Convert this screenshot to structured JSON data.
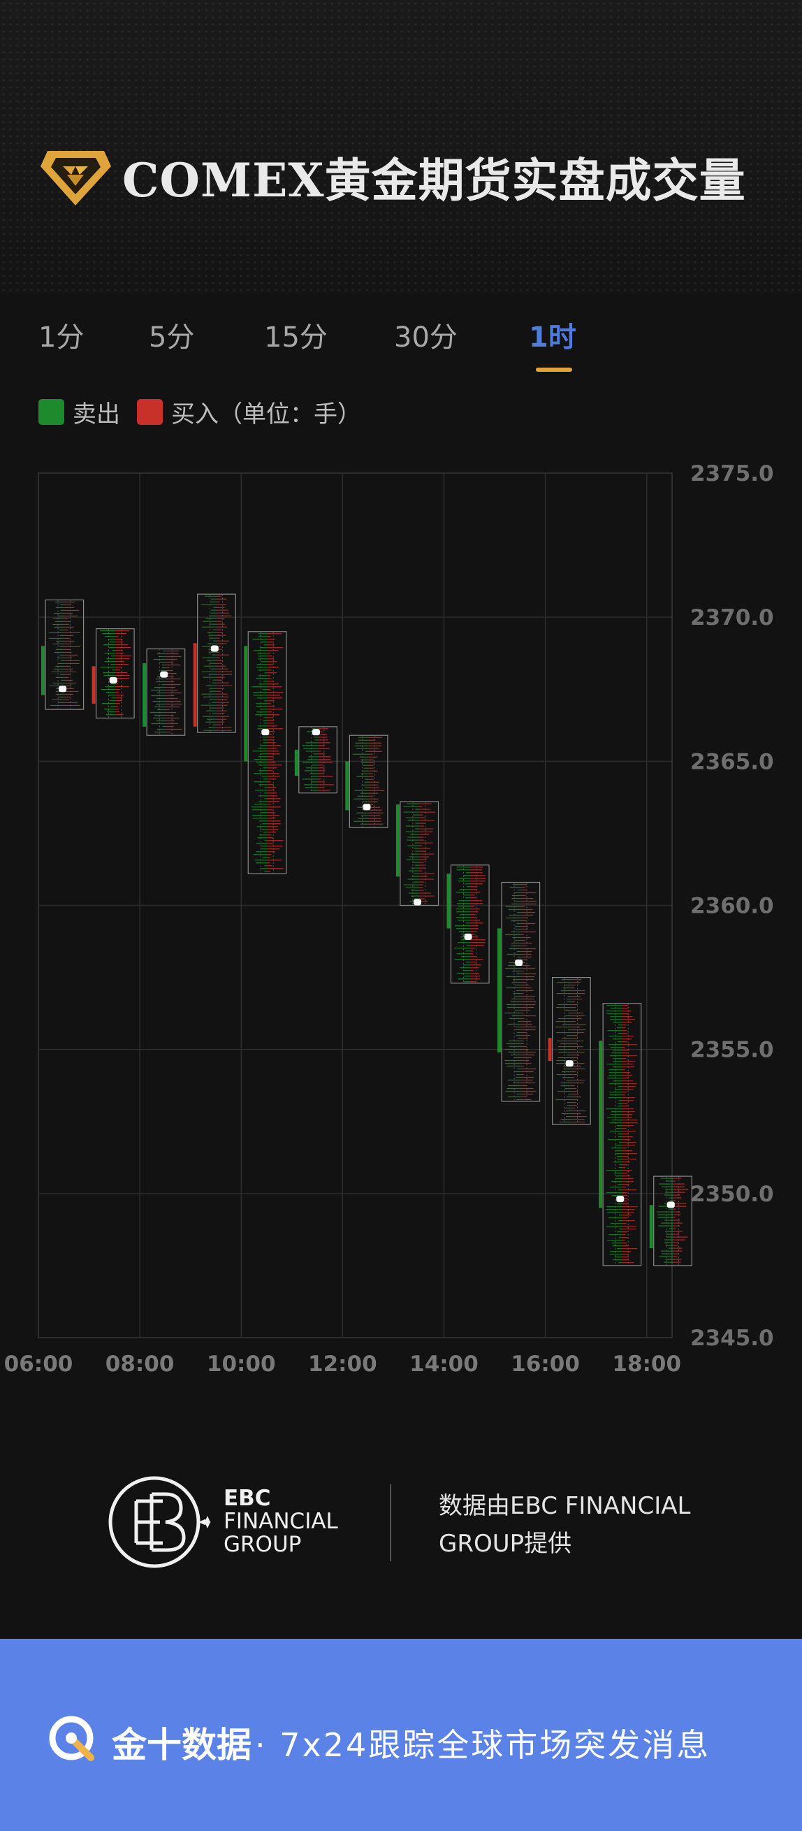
{
  "header": {
    "title": "COMEX黄金期货实盘成交量"
  },
  "tabs": [
    {
      "label": "1分",
      "active": false
    },
    {
      "label": "5分",
      "active": false
    },
    {
      "label": "15分",
      "active": false
    },
    {
      "label": "30分",
      "active": false
    },
    {
      "label": "1时",
      "active": true
    }
  ],
  "legend": {
    "sell_label": "卖出",
    "buy_label": "买入（单位：手）",
    "sell_color": "#1e8a2e",
    "buy_color": "#c8302a"
  },
  "chart_data": {
    "type": "candlestick-volume-profile",
    "y_ticks": [
      "2375.0",
      "2370.0",
      "2365.0",
      "2360.0",
      "2355.0",
      "2350.0",
      "2345.0"
    ],
    "ylim": [
      2345.0,
      2375.0
    ],
    "x_ticks": [
      "06:00",
      "08:00",
      "10:00",
      "12:00",
      "14:00",
      "16:00",
      "18:00"
    ],
    "grid": true,
    "bars": [
      {
        "time": "06:00",
        "open": 2369.0,
        "close": 2367.3,
        "high": 2370.6,
        "low": 2366.8,
        "marker": 2367.5,
        "direction": "sell"
      },
      {
        "time": "07:00",
        "open": 2367.0,
        "close": 2368.3,
        "high": 2369.6,
        "low": 2366.5,
        "marker": 2367.8,
        "direction": "buy"
      },
      {
        "time": "08:00",
        "open": 2368.4,
        "close": 2366.2,
        "high": 2368.9,
        "low": 2365.9,
        "marker": 2368.0,
        "direction": "sell"
      },
      {
        "time": "09:00",
        "open": 2366.2,
        "close": 2369.1,
        "high": 2370.8,
        "low": 2366.0,
        "marker": 2368.9,
        "direction": "buy"
      },
      {
        "time": "10:00",
        "open": 2369.0,
        "close": 2365.0,
        "high": 2369.5,
        "low": 2361.1,
        "marker": 2366.0,
        "direction": "sell"
      },
      {
        "time": "11:00",
        "open": 2365.4,
        "close": 2364.5,
        "high": 2366.2,
        "low": 2363.9,
        "marker": 2366.0,
        "direction": "sell"
      },
      {
        "time": "12:00",
        "open": 2365.0,
        "close": 2363.3,
        "high": 2365.9,
        "low": 2362.7,
        "marker": 2363.4,
        "direction": "sell"
      },
      {
        "time": "13:00",
        "open": 2363.5,
        "close": 2361.0,
        "high": 2363.6,
        "low": 2360.0,
        "marker": 2360.1,
        "direction": "sell"
      },
      {
        "time": "14:00",
        "open": 2361.1,
        "close": 2359.2,
        "high": 2361.4,
        "low": 2357.3,
        "marker": 2358.9,
        "direction": "sell"
      },
      {
        "time": "15:00",
        "open": 2359.2,
        "close": 2354.9,
        "high": 2360.8,
        "low": 2353.2,
        "marker": 2358.0,
        "direction": "sell"
      },
      {
        "time": "16:00",
        "open": 2354.6,
        "close": 2355.4,
        "high": 2357.5,
        "low": 2352.4,
        "marker": 2354.5,
        "direction": "buy"
      },
      {
        "time": "17:00",
        "open": 2355.3,
        "close": 2349.5,
        "high": 2356.6,
        "low": 2347.5,
        "marker": 2349.8,
        "direction": "sell"
      },
      {
        "time": "18:00",
        "open": 2349.6,
        "close": 2348.1,
        "high": 2350.6,
        "low": 2347.5,
        "marker": 2349.6,
        "direction": "sell"
      }
    ]
  },
  "footer": {
    "logo_line1": "EBC",
    "logo_line2": "FINANCIAL",
    "logo_line3": "GROUP",
    "provider_text": "数据由EBC FINANCIAL GROUP提供"
  },
  "banner": {
    "brand": "金十数据",
    "slogan": "· 7x24跟踪全球市场突发消息"
  }
}
